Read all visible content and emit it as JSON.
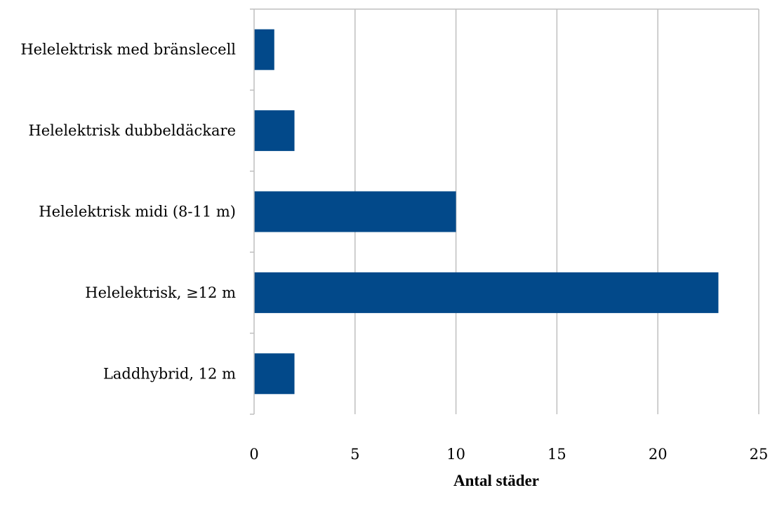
{
  "chart_data": {
    "type": "bar",
    "orientation": "horizontal",
    "categories": [
      "Helelektrisk med bränslecell",
      "Helelektrisk dubbeldäckare",
      "Helelektrisk midi (8-11 m)",
      "Helelektrisk, ≥12 m",
      "Laddhybrid, 12 m"
    ],
    "values": [
      1,
      2,
      10,
      23,
      2
    ],
    "xlabel": "Antal städer",
    "ylabel": "",
    "title": "",
    "xlim": [
      0,
      25
    ],
    "xticks": [
      0,
      5,
      10,
      15,
      20,
      25
    ],
    "grid": true,
    "legend": "none",
    "colors": {
      "bar": "#02498a",
      "grid": "#bfbfbf",
      "axis": "#bfbfbf"
    }
  }
}
